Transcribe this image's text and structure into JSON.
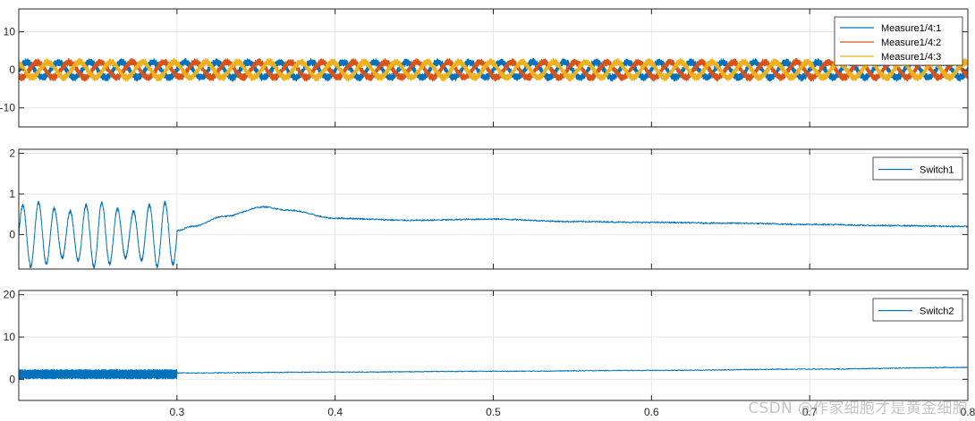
{
  "chart_data": [
    {
      "type": "line",
      "title": "",
      "xlabel": "",
      "ylabel": "",
      "xlim": [
        0.2,
        0.8
      ],
      "ylim": [
        -15,
        16
      ],
      "yticks": [
        -10,
        0,
        10
      ],
      "xticks": [
        0.3,
        0.4,
        0.5,
        0.6,
        0.7,
        0.8
      ],
      "xtick_labels": [],
      "grid": true,
      "legend": "top-right",
      "series": [
        {
          "name": "Measure1/4:1",
          "color": "#0072BD",
          "amplitude": 2,
          "frequency_hz": 50,
          "phase_deg": 0,
          "ripple_amplitude": 1
        },
        {
          "name": "Measure1/4:2",
          "color": "#D95319",
          "amplitude": 2,
          "frequency_hz": 50,
          "phase_deg": -120,
          "ripple_amplitude": 1
        },
        {
          "name": "Measure1/4:3",
          "color": "#EDB120",
          "amplitude": 2,
          "frequency_hz": 50,
          "phase_deg": 120,
          "ripple_amplitude": 1
        }
      ]
    },
    {
      "type": "line",
      "title": "",
      "xlabel": "",
      "ylabel": "",
      "xlim": [
        0.2,
        0.8
      ],
      "ylim": [
        -0.85,
        2.1
      ],
      "yticks": [
        0,
        1,
        2
      ],
      "xticks": [
        0.3,
        0.4,
        0.5,
        0.6,
        0.7,
        0.8
      ],
      "xtick_labels": [],
      "grid": true,
      "legend": "top-right",
      "series": [
        {
          "name": "Switch1",
          "color": "#0072BD",
          "oscillating_segment": {
            "x_range": [
              0.2,
              0.3
            ],
            "center": 0,
            "amplitude": 0.8,
            "frequency_hz": 100
          },
          "x": [
            0.3,
            0.31,
            0.33,
            0.355,
            0.37,
            0.4,
            0.45,
            0.5,
            0.55,
            0.6,
            0.65,
            0.7,
            0.75,
            0.8
          ],
          "y": [
            0.1,
            0.2,
            0.45,
            0.68,
            0.6,
            0.4,
            0.35,
            0.38,
            0.32,
            0.3,
            0.28,
            0.25,
            0.22,
            0.2
          ]
        }
      ]
    },
    {
      "type": "line",
      "title": "",
      "xlabel": "",
      "ylabel": "",
      "xlim": [
        0.2,
        0.8
      ],
      "ylim": [
        -5,
        21
      ],
      "yticks": [
        0,
        10,
        20
      ],
      "xticks": [
        0.3,
        0.4,
        0.5,
        0.6,
        0.7,
        0.8
      ],
      "xtick_labels": [
        "0.3",
        "0.4",
        "0.5",
        "0.6",
        "0.7",
        "0.8"
      ],
      "grid": true,
      "legend": "top-right",
      "series": [
        {
          "name": "Switch2",
          "color": "#0072BD",
          "oscillating_segment": {
            "x_range": [
              0.2,
              0.3
            ],
            "center": 1.2,
            "amplitude": 1.1,
            "frequency_hz": 2000
          },
          "x": [
            0.3,
            0.4,
            0.5,
            0.6,
            0.7,
            0.8
          ],
          "y": [
            1.5,
            1.7,
            1.9,
            2.1,
            2.4,
            2.8
          ]
        }
      ]
    }
  ],
  "watermark": "CSDN @作家细胞才是黄金细胞"
}
